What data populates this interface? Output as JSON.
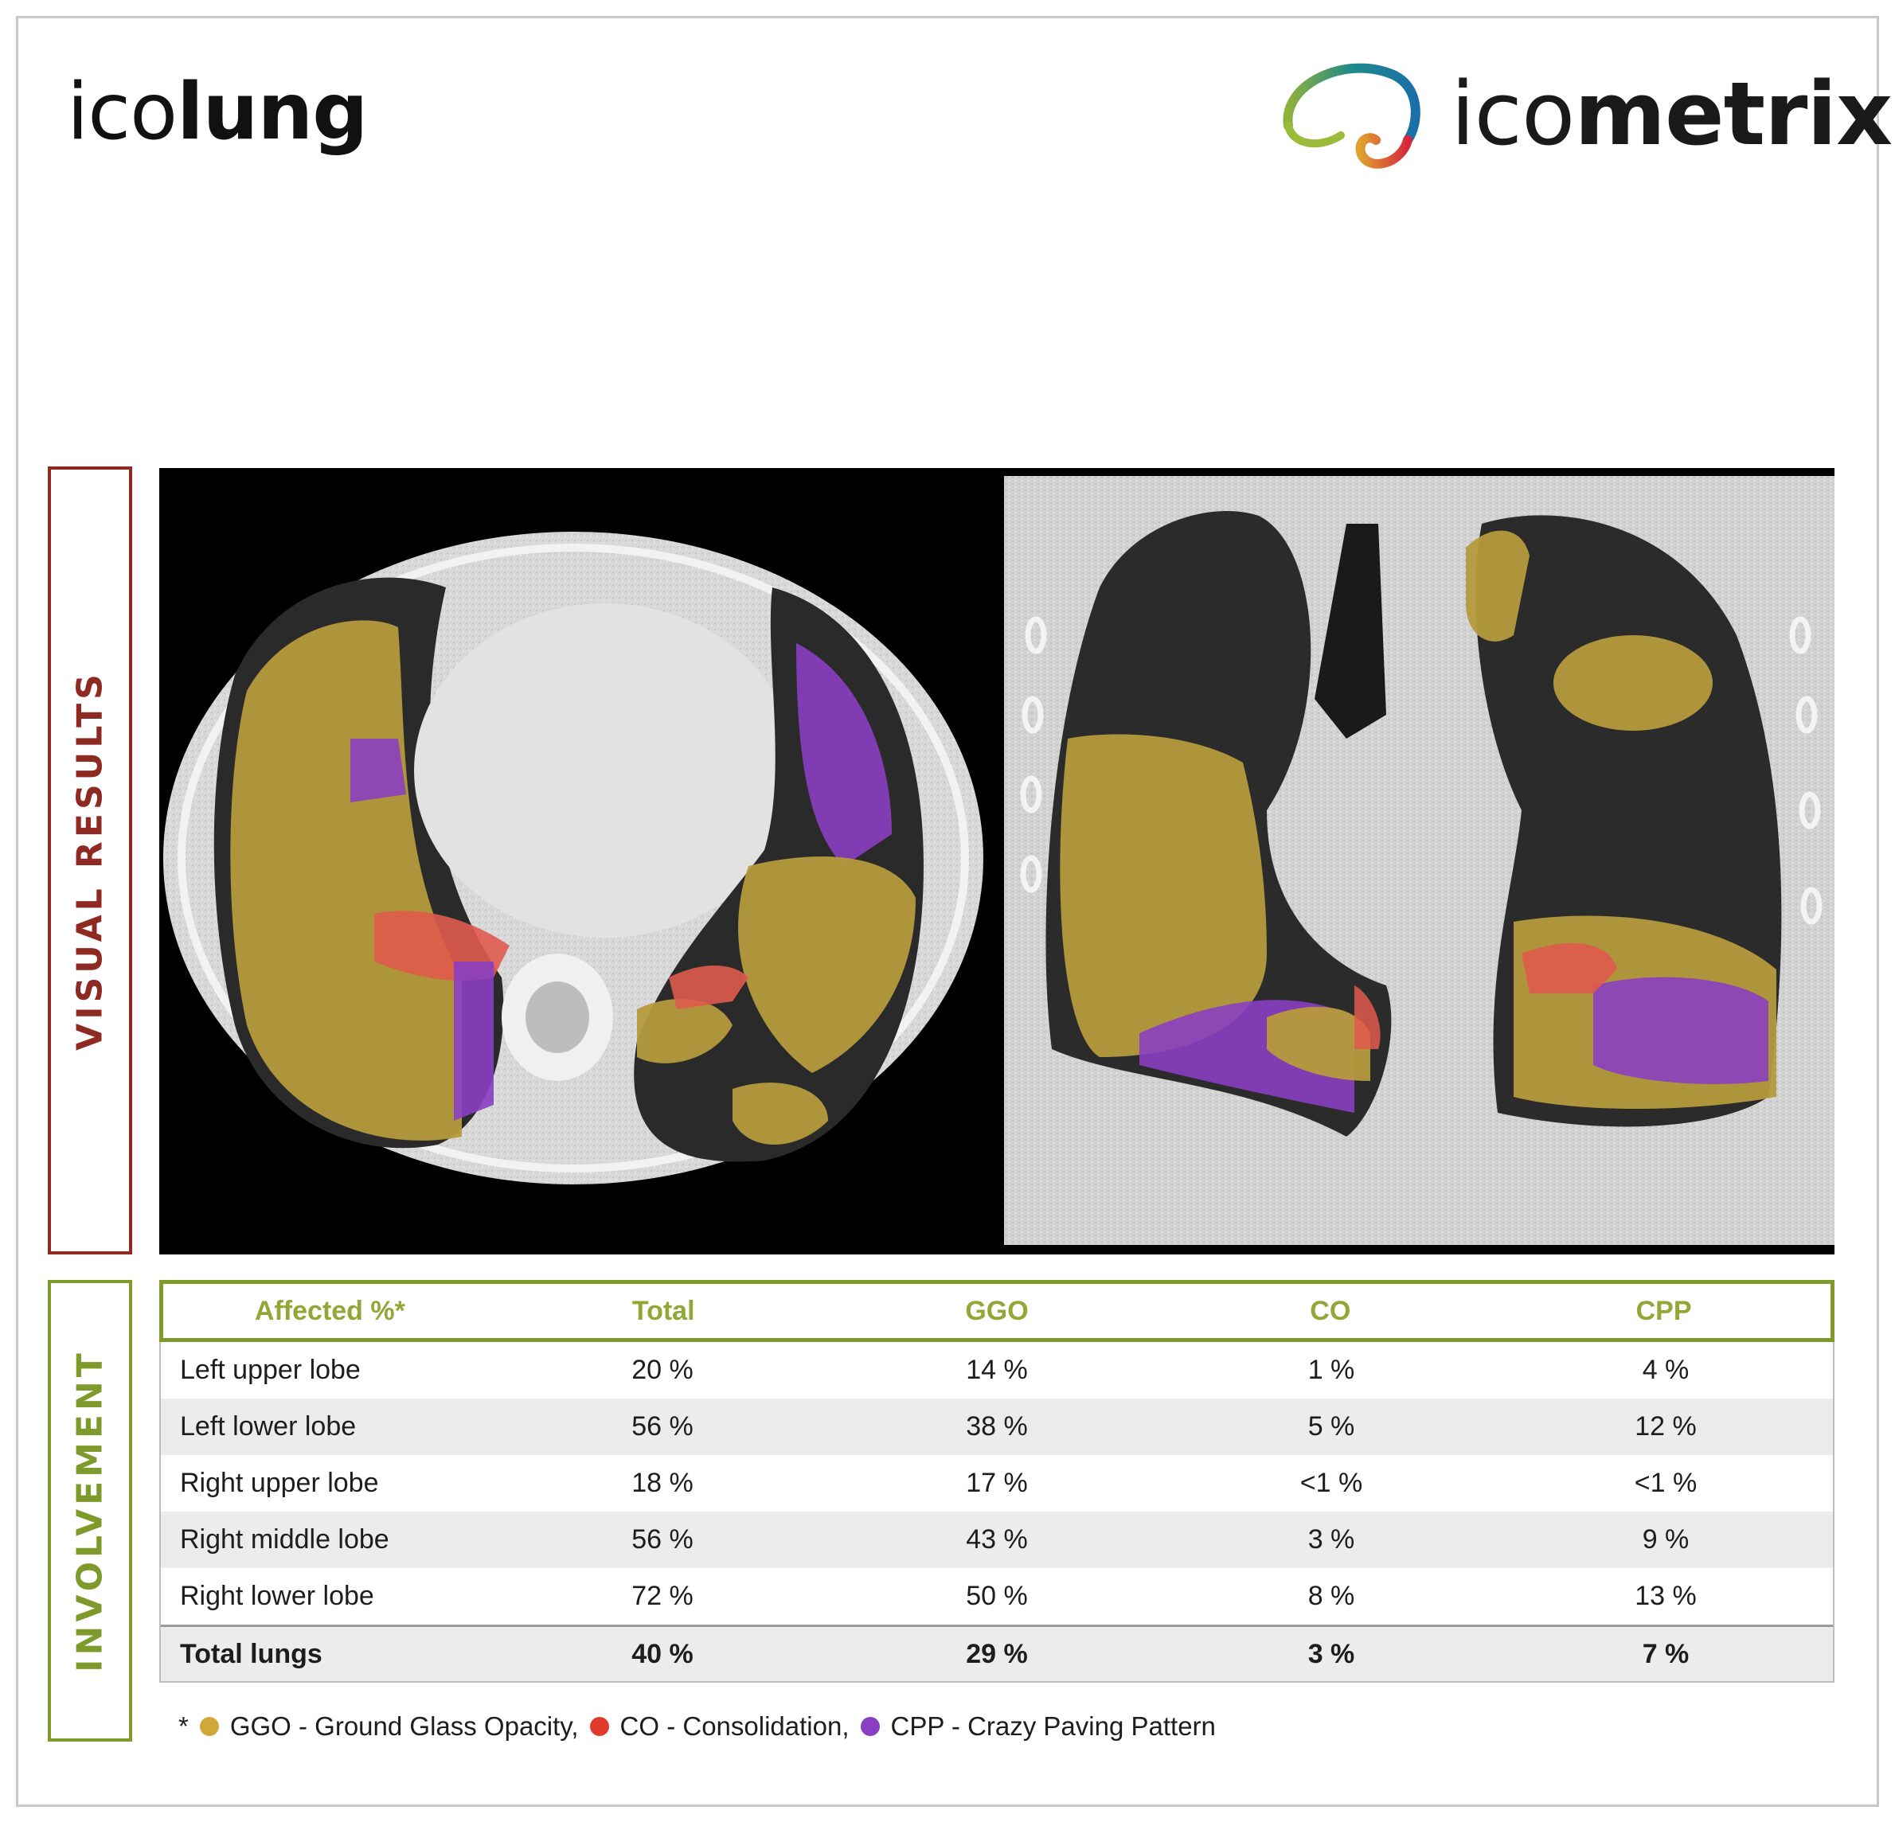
{
  "header": {
    "product_prefix": "ico",
    "product_bold": "lung",
    "company_prefix": "ico",
    "company_bold": "metrix"
  },
  "side_labels": {
    "visual": "VISUAL RESULTS",
    "involvement": "INVOLVEMENT"
  },
  "colors": {
    "visual_accent": "#8f2a23",
    "involvement_accent": "#7e9a2a",
    "ggo": "#d0a83a",
    "co": "#e03a2c",
    "cpp": "#8a3fc2"
  },
  "table": {
    "headers": [
      "Affected %*",
      "Total",
      "GGO",
      "CO",
      "CPP"
    ],
    "rows": [
      [
        "Left upper lobe",
        "20 %",
        "14 %",
        "1 %",
        "4 %"
      ],
      [
        "Left lower lobe",
        "56 %",
        "38 %",
        "5 %",
        "12 %"
      ],
      [
        "Right upper lobe",
        "18 %",
        "17 %",
        "<1 %",
        "<1 %"
      ],
      [
        "Right middle lobe",
        "56 %",
        "43 %",
        "3 %",
        "9 %"
      ],
      [
        "Right lower lobe",
        "72 %",
        "50 %",
        "8 %",
        "13 %"
      ]
    ],
    "total": [
      "Total lungs",
      "40 %",
      "29 %",
      "3 %",
      "7 %"
    ]
  },
  "footnote": {
    "marker": "*",
    "ggo": "GGO - Ground Glass Opacity,",
    "co": "CO - Consolidation,",
    "cpp": "CPP - Crazy Paving Pattern"
  }
}
